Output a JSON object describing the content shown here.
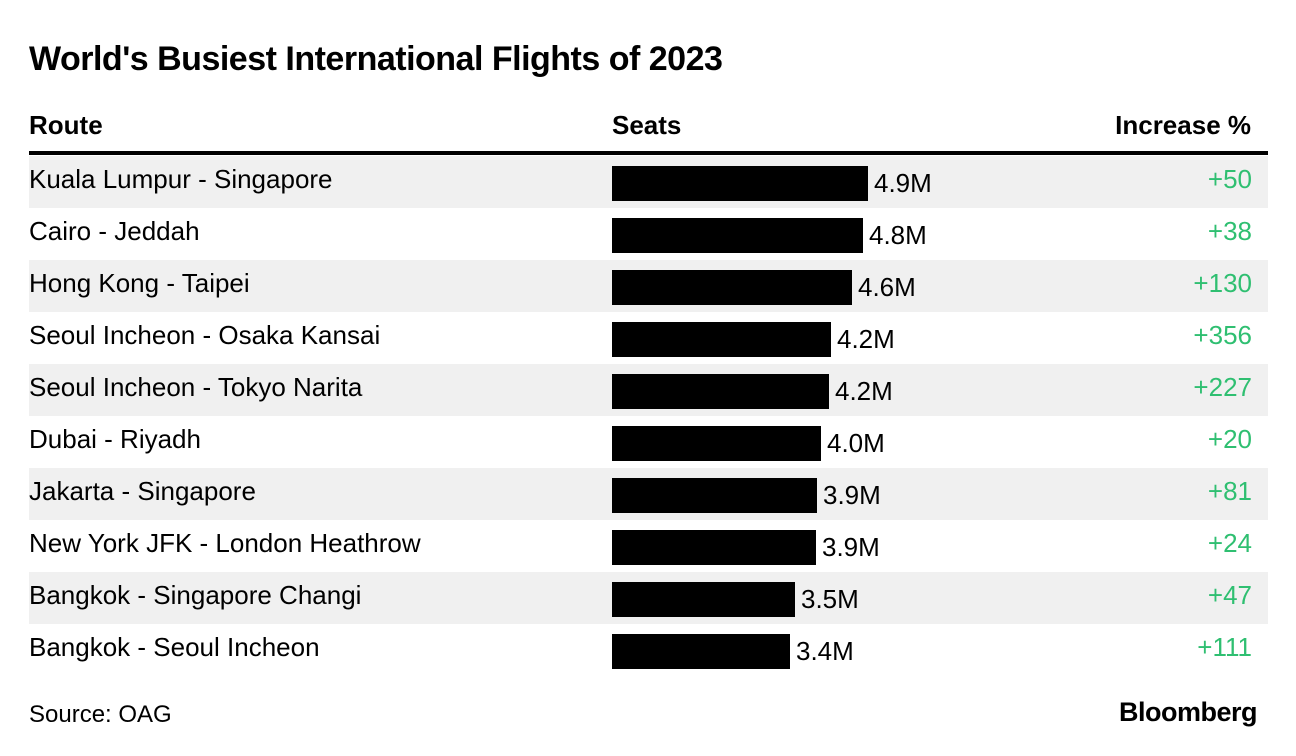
{
  "chart_data": {
    "type": "table",
    "title": "World's Busiest International Flights of 2023",
    "columns": [
      "Route",
      "Seats",
      "Increase %"
    ],
    "unit": "M",
    "xlim": [
      0,
      4.9
    ],
    "rows": [
      {
        "route": "Kuala Lumpur - Singapore",
        "seats": 4.9,
        "seats_label": "4.9M",
        "increase": "+50"
      },
      {
        "route": "Cairo - Jeddah",
        "seats": 4.8,
        "seats_label": "4.8M",
        "increase": "+38"
      },
      {
        "route": "Hong Kong - Taipei",
        "seats": 4.6,
        "seats_label": "4.6M",
        "increase": "+130"
      },
      {
        "route": "Seoul Incheon - Osaka Kansai",
        "seats": 4.2,
        "seats_label": "4.2M",
        "increase": "+356"
      },
      {
        "route": "Seoul Incheon - Tokyo Narita",
        "seats": 4.15,
        "seats_label": "4.2M",
        "increase": "+227"
      },
      {
        "route": "Dubai - Riyadh",
        "seats": 4.0,
        "seats_label": "4.0M",
        "increase": "+20"
      },
      {
        "route": "Jakarta - Singapore",
        "seats": 3.92,
        "seats_label": "3.9M",
        "increase": "+81"
      },
      {
        "route": "New York JFK - London Heathrow",
        "seats": 3.9,
        "seats_label": "3.9M",
        "increase": "+24"
      },
      {
        "route": "Bangkok - Singapore Changi",
        "seats": 3.5,
        "seats_label": "3.5M",
        "increase": "+47"
      },
      {
        "route": "Bangkok - Seoul Incheon",
        "seats": 3.4,
        "seats_label": "3.4M",
        "increase": "+111"
      }
    ],
    "source": "Source: OAG",
    "brand": "Bloomberg",
    "colors": {
      "bar": "#000000",
      "increase": "#2fbf71",
      "shade": "#f0f0f0"
    }
  }
}
